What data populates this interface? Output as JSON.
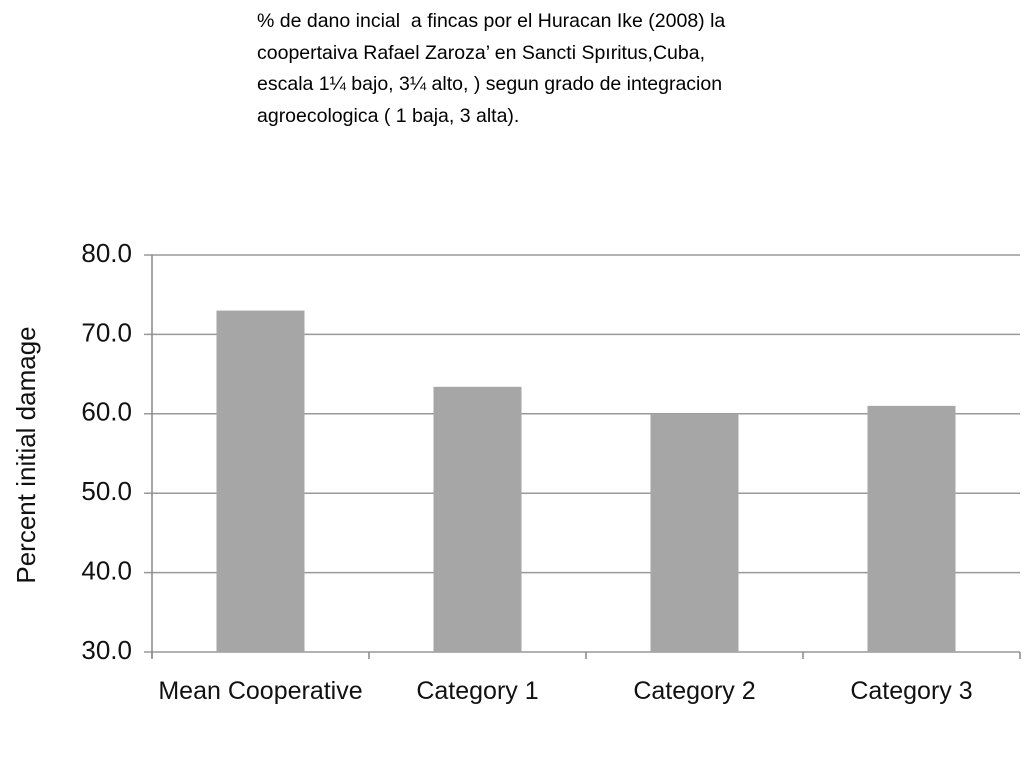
{
  "chart_data": {
    "type": "bar",
    "title": "% de dano incial  a fincas por el Huracan Ike (2008) la coopertaiva Rafael Zaroza’ en Sancti Spıritus,Cuba,  escala 1¼ bajo, 3¼ alto, ) segun grado de integracion agroecologica ( 1 baja, 3 alta).",
    "y_label": "Percent initial damage",
    "categories": [
      "Mean Cooperative",
      "Category 1",
      "Category 2",
      "Category 3"
    ],
    "values": [
      73.0,
      63.4,
      60.0,
      61.0
    ],
    "color": "#a6a6a6",
    "ylim": [
      30,
      80
    ],
    "yticks": [
      {
        "value": 30,
        "label": "30.0"
      },
      {
        "value": 40,
        "label": "40.0"
      },
      {
        "value": 50,
        "label": "50.0"
      },
      {
        "value": 60,
        "label": "60.0"
      },
      {
        "value": 70,
        "label": "70.0"
      },
      {
        "value": 80,
        "label": "80.0"
      }
    ],
    "grid": true
  }
}
